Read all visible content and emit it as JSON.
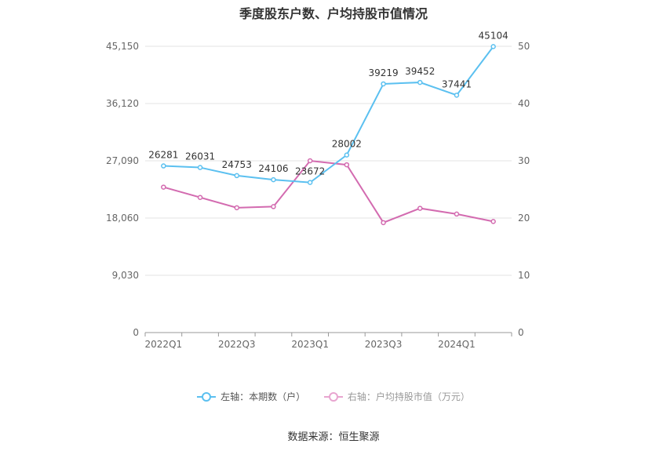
{
  "title": "季度股东户数、户均持股市值情况",
  "source": "数据来源：恒生聚源",
  "chart_data": {
    "type": "line",
    "x": [
      "2022Q1",
      "2022Q2",
      "2022Q3",
      "2022Q4",
      "2023Q1",
      "2023Q2",
      "2023Q3",
      "2023Q4",
      "2024Q1",
      "2024Q2"
    ],
    "x_tick_labels": [
      "2022Q1",
      "2022Q3",
      "2023Q1",
      "2023Q3",
      "2024Q1"
    ],
    "left_axis": {
      "min": 0,
      "max": 45150,
      "ticks": [
        "0",
        "9,030",
        "18,060",
        "27,090",
        "36,120",
        "45,150"
      ],
      "tick_values": [
        0,
        9030,
        18060,
        27090,
        36120,
        45150
      ]
    },
    "right_axis": {
      "min": 0,
      "max": 50,
      "ticks": [
        "0",
        "10",
        "20",
        "30",
        "40",
        "50"
      ],
      "tick_values": [
        0,
        10,
        20,
        30,
        40,
        50
      ]
    },
    "grid": true,
    "legend_position": "bottom",
    "series": [
      {
        "name": "左轴：本期数（户）",
        "axis": "left",
        "color": "#5bc0f0",
        "values": [
          26281,
          26031,
          24753,
          24106,
          23672,
          28002,
          39219,
          39452,
          37441,
          45104
        ],
        "labels": [
          "26281",
          "26031",
          "24753",
          "24106",
          "23672",
          "28002",
          "39219",
          "39452",
          "37441",
          "45104"
        ]
      },
      {
        "name": "右轴：户均持股市值（万元）",
        "axis": "right",
        "color": "#d36bb0",
        "values": [
          25.4,
          23.6,
          21.8,
          22.0,
          30.0,
          29.3,
          19.2,
          21.7,
          20.7,
          19.4
        ]
      }
    ]
  }
}
